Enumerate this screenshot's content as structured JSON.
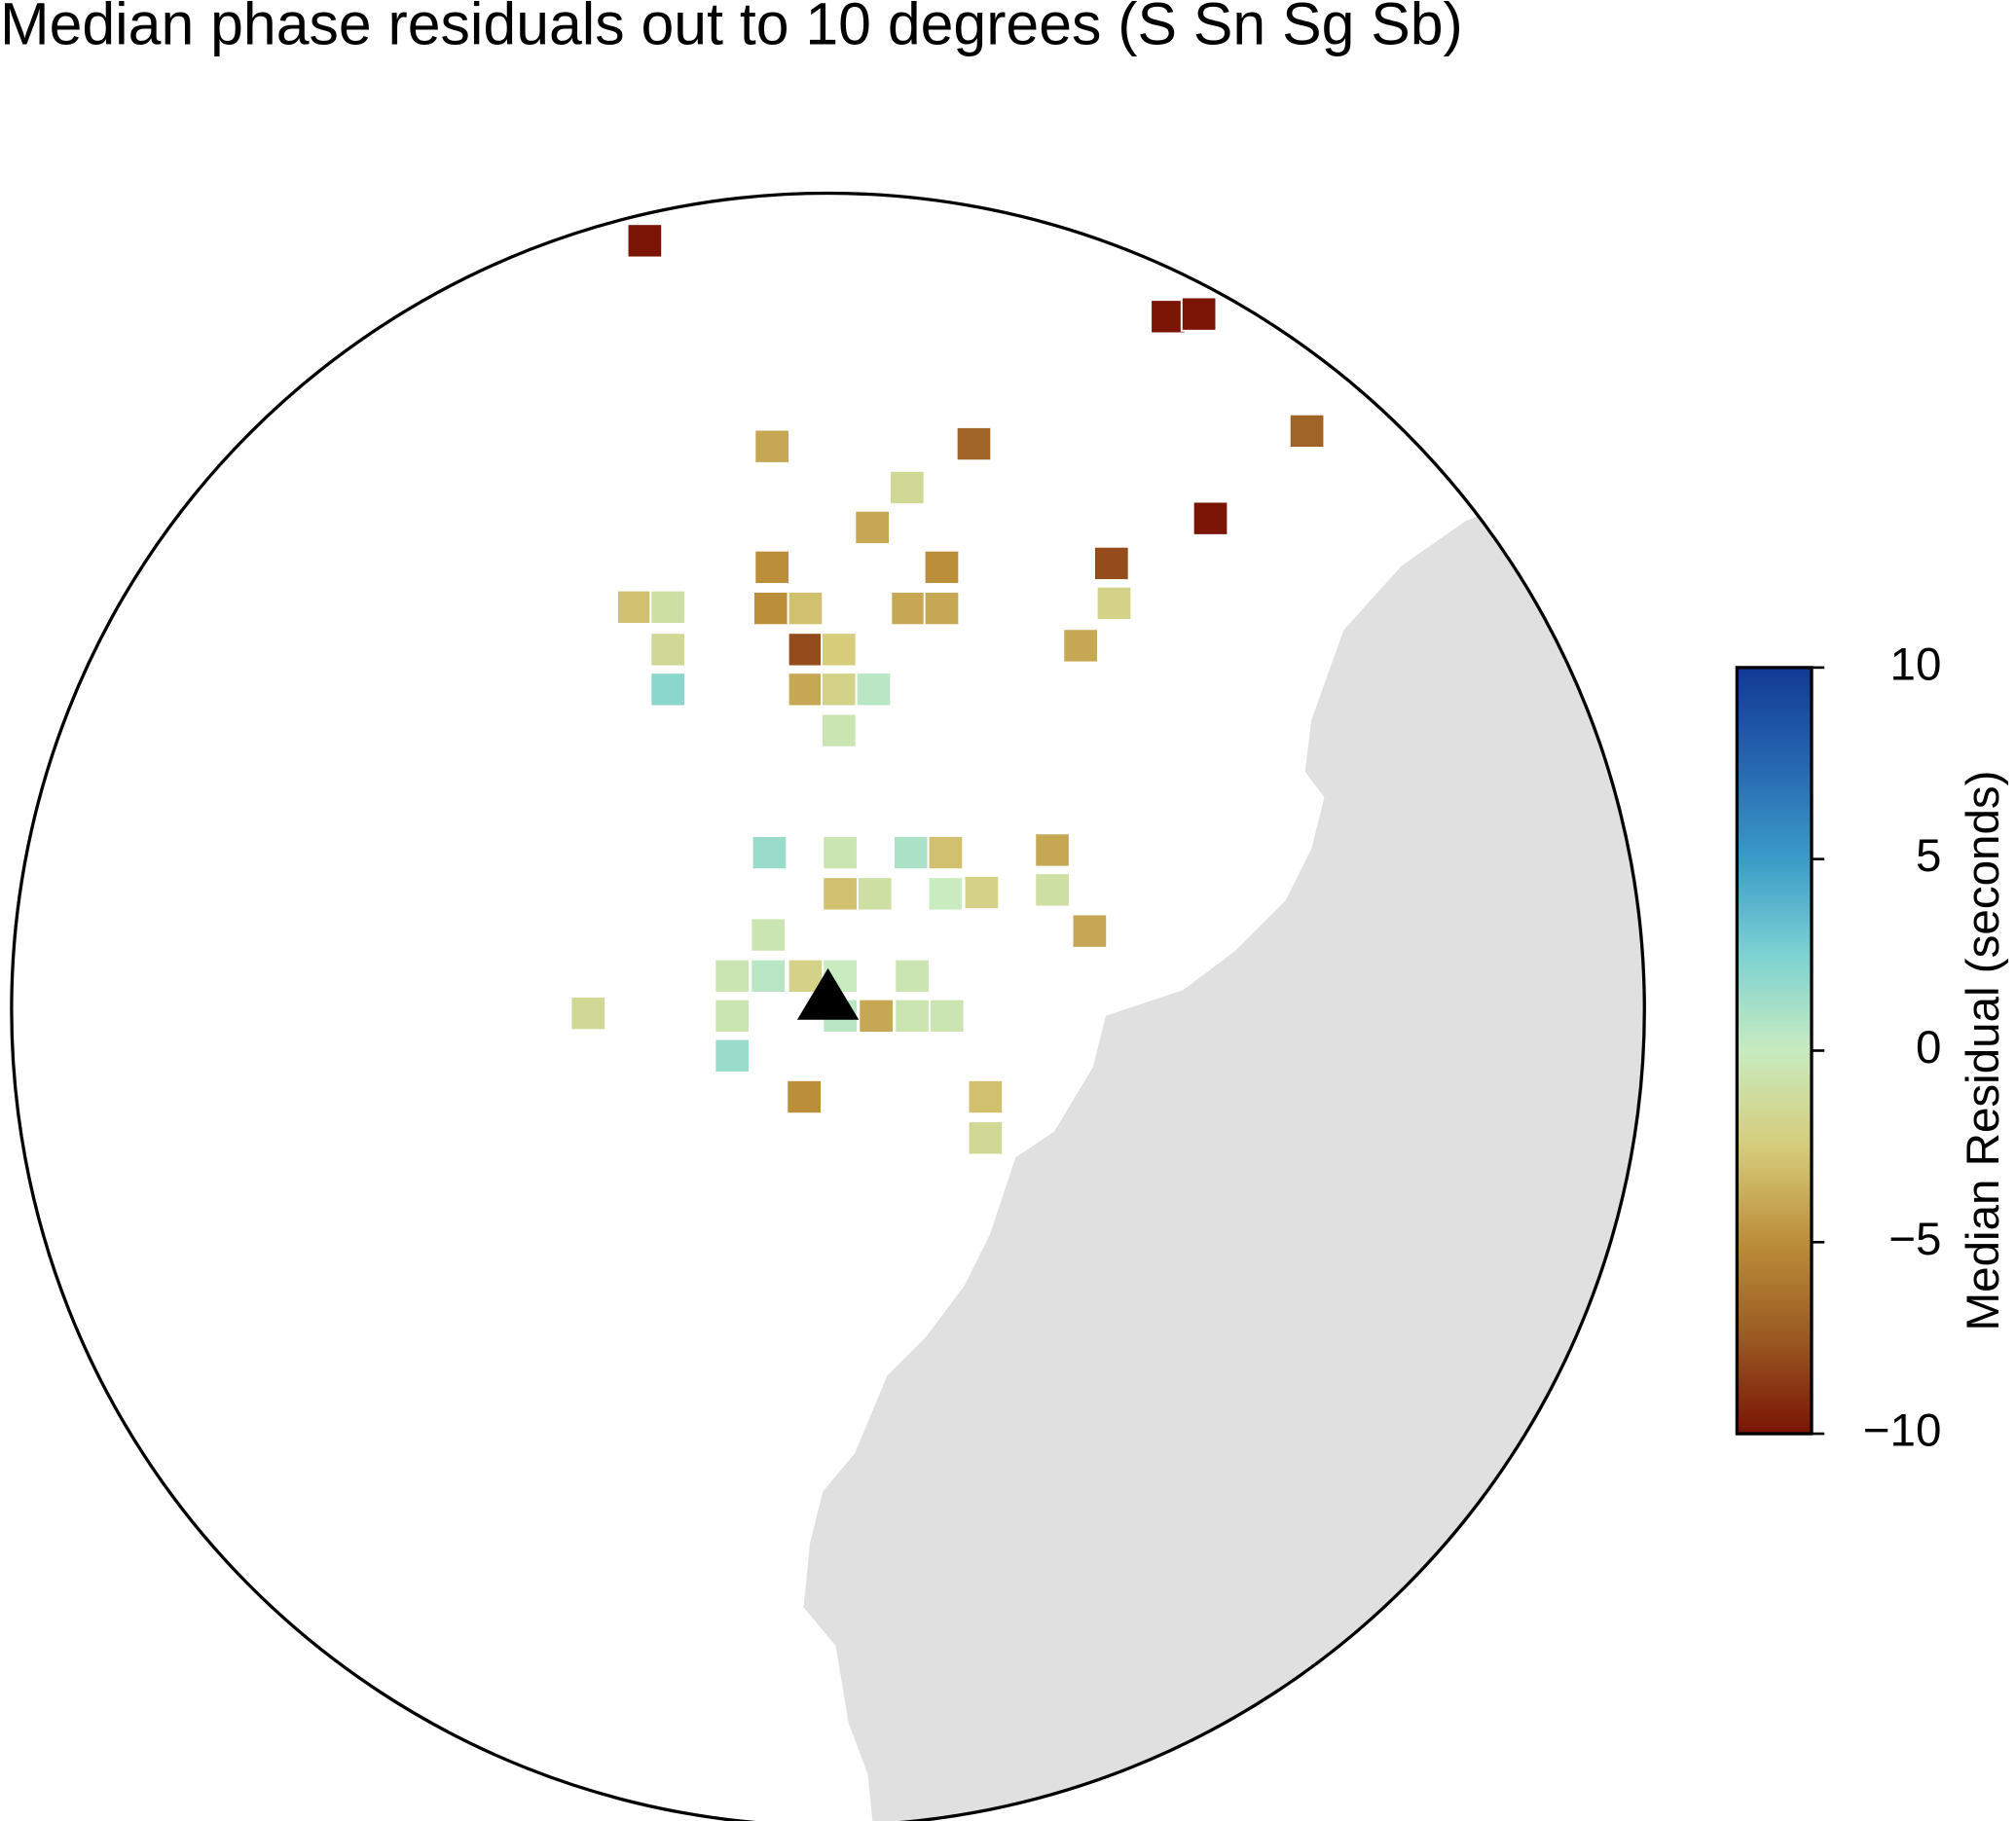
{
  "chart_data": {
    "type": "map",
    "title": "Median phase residuals out to 10 degrees (S Sn Sg Sb)",
    "colorbar_label": "Median Residual (seconds)",
    "clim": [
      -10,
      10
    ],
    "cticks": [
      {
        "value": -10,
        "label": "−10"
      },
      {
        "value": -5,
        "label": "−5"
      },
      0,
      5,
      10
    ],
    "colormap": [
      "#7a1405",
      "#9a5a22",
      "#bb8e3a",
      "#d6cc7a",
      "#c8ebc0",
      "#7cd2d2",
      "#3a9bc8",
      "#2566b0",
      "#113a94"
    ],
    "values": [
      -10,
      -10,
      -10,
      -4,
      -7,
      -7,
      -1.5,
      -4,
      -10,
      -5,
      -5,
      -8,
      -3,
      -1,
      -5,
      -3,
      -4,
      -4,
      -2,
      -1.5,
      -8,
      -2.5,
      -4,
      2,
      -4,
      -2,
      0.5,
      -0.5,
      1.5,
      -0.5,
      1,
      -3,
      -4,
      -3,
      -1,
      0,
      -2,
      -1,
      -4,
      -0.5,
      -0.5,
      0.5,
      -2,
      0,
      -0.5,
      -1.5,
      -0.5,
      0.5,
      -4,
      -0.5,
      -0.5,
      1.5,
      -5,
      -3,
      -1.5
    ]
  }
}
